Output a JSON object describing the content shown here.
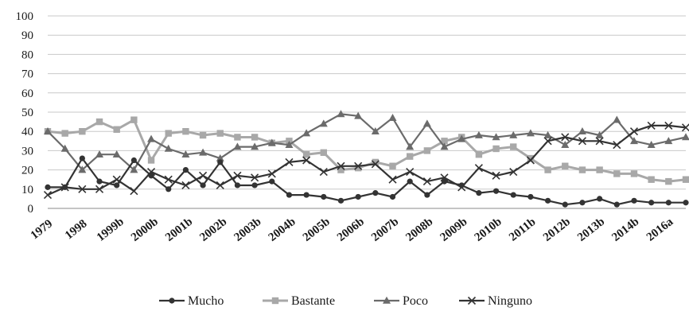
{
  "chart_data": {
    "type": "line",
    "title": "",
    "xlabel": "",
    "ylabel": "",
    "ylim": [
      0,
      100
    ],
    "yticks": [
      0,
      10,
      20,
      30,
      40,
      50,
      60,
      70,
      80,
      90,
      100
    ],
    "grid": true,
    "legend_position": "bottom",
    "x_tick_labels": [
      "1979",
      "1998",
      "1999b",
      "2000b",
      "2001b",
      "2002b",
      "2003b",
      "2004b",
      "2005b",
      "2006b",
      "2007b",
      "2008b",
      "2009b",
      "2010b",
      "2011b",
      "2012b",
      "2013b",
      "2014b",
      "2016a"
    ],
    "colors": {
      "Mucho": "#333333",
      "Bastante": "#a8a8a8",
      "Poco": "#6b6b6b",
      "Ninguno": "#333333"
    },
    "series": [
      {
        "name": "Mucho",
        "marker": "circle",
        "values": [
          11,
          11,
          26,
          14,
          12,
          25,
          17,
          10,
          20,
          12,
          24,
          12,
          12,
          14,
          7,
          7,
          6,
          4,
          6,
          8,
          6,
          14,
          7,
          14,
          12,
          8,
          9,
          7,
          6,
          4,
          2,
          3,
          5,
          2,
          4,
          3,
          3,
          3
        ]
      },
      {
        "name": "Bastante",
        "marker": "square",
        "values": [
          40,
          39,
          40,
          45,
          41,
          46,
          25,
          39,
          40,
          38,
          39,
          37,
          37,
          34,
          35,
          28,
          29,
          20,
          21,
          24,
          22,
          27,
          30,
          35,
          37,
          28,
          31,
          32,
          26,
          20,
          22,
          20,
          20,
          18,
          18,
          15,
          14,
          15
        ]
      },
      {
        "name": "Poco",
        "marker": "triangle",
        "values": [
          40,
          31,
          20,
          28,
          28,
          20,
          36,
          31,
          28,
          29,
          26,
          32,
          32,
          34,
          33,
          39,
          44,
          49,
          48,
          40,
          47,
          32,
          44,
          32,
          36,
          38,
          37,
          38,
          39,
          38,
          33,
          40,
          38,
          46,
          35,
          33,
          35,
          37
        ]
      },
      {
        "name": "Ninguno",
        "marker": "x",
        "values": [
          7,
          11,
          10,
          10,
          15,
          9,
          19,
          15,
          12,
          17,
          12,
          17,
          16,
          18,
          24,
          25,
          19,
          22,
          22,
          23,
          15,
          19,
          14,
          16,
          11,
          21,
          17,
          19,
          25,
          35,
          37,
          35,
          35,
          33,
          40,
          43,
          43,
          42
        ]
      }
    ]
  }
}
